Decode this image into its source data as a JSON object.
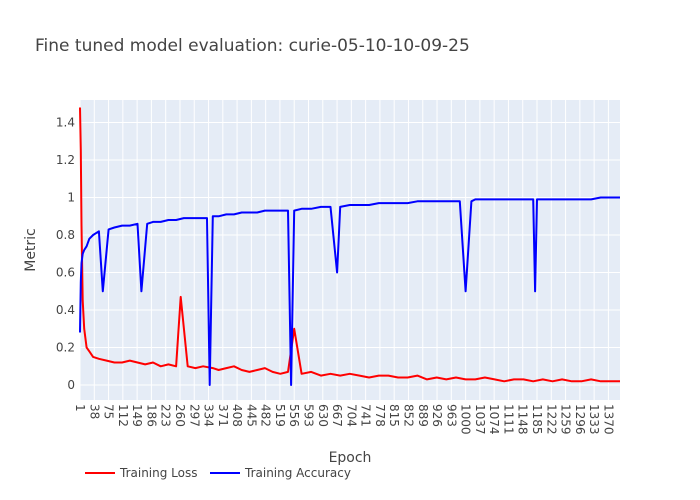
{
  "chart_data": {
    "type": "line",
    "title": "Fine tuned model evaluation: curie-05-10-10-09-25",
    "xlabel": "Epoch",
    "ylabel": "Metric",
    "xlim": [
      1,
      1400
    ],
    "ylim": [
      -0.08,
      1.52
    ],
    "grid": true,
    "legend_position": "bottom-left",
    "x_ticks": [
      1,
      38,
      75,
      112,
      149,
      186,
      223,
      260,
      297,
      334,
      371,
      408,
      445,
      482,
      519,
      556,
      593,
      630,
      667,
      704,
      741,
      778,
      815,
      852,
      889,
      926,
      963,
      1000,
      1037,
      1074,
      1111,
      1148,
      1185,
      1222,
      1259,
      1296,
      1333,
      1370
    ],
    "y_ticks": [
      0,
      0.2,
      0.4,
      0.6,
      0.8,
      1,
      1.2,
      1.4
    ],
    "y_tick_labels": [
      "0",
      "0.2",
      "0.4",
      "0.6",
      "0.8",
      "1",
      "1.2",
      "1.4"
    ],
    "series": [
      {
        "name": "Training Loss",
        "color": "#ff0000",
        "x": [
          1,
          3,
          5,
          8,
          12,
          18,
          25,
          35,
          50,
          70,
          90,
          110,
          130,
          150,
          170,
          190,
          210,
          230,
          250,
          262,
          280,
          300,
          320,
          345,
          360,
          380,
          400,
          420,
          440,
          460,
          480,
          500,
          520,
          540,
          556,
          575,
          600,
          625,
          650,
          675,
          700,
          725,
          750,
          775,
          800,
          825,
          850,
          875,
          900,
          925,
          950,
          975,
          1000,
          1025,
          1050,
          1075,
          1100,
          1125,
          1150,
          1175,
          1200,
          1225,
          1250,
          1275,
          1300,
          1325,
          1350,
          1375,
          1400
        ],
        "values": [
          1.48,
          1.25,
          0.85,
          0.45,
          0.3,
          0.2,
          0.18,
          0.15,
          0.14,
          0.13,
          0.12,
          0.12,
          0.13,
          0.12,
          0.11,
          0.12,
          0.1,
          0.11,
          0.1,
          0.47,
          0.1,
          0.09,
          0.1,
          0.09,
          0.08,
          0.09,
          0.1,
          0.08,
          0.07,
          0.08,
          0.09,
          0.07,
          0.06,
          0.07,
          0.3,
          0.06,
          0.07,
          0.05,
          0.06,
          0.05,
          0.06,
          0.05,
          0.04,
          0.05,
          0.05,
          0.04,
          0.04,
          0.05,
          0.03,
          0.04,
          0.03,
          0.04,
          0.03,
          0.03,
          0.04,
          0.03,
          0.02,
          0.03,
          0.03,
          0.02,
          0.03,
          0.02,
          0.03,
          0.02,
          0.02,
          0.03,
          0.02,
          0.02,
          0.02
        ]
      },
      {
        "name": "Training Accuracy",
        "color": "#0000ff",
        "x": [
          1,
          3,
          5,
          8,
          12,
          18,
          25,
          35,
          50,
          60,
          75,
          90,
          110,
          130,
          150,
          160,
          175,
          190,
          210,
          230,
          250,
          270,
          290,
          310,
          330,
          337,
          345,
          360,
          380,
          400,
          420,
          440,
          460,
          480,
          500,
          520,
          540,
          548,
          556,
          575,
          600,
          625,
          650,
          667,
          675,
          700,
          725,
          750,
          775,
          800,
          825,
          850,
          875,
          900,
          925,
          950,
          975,
          985,
          1000,
          1015,
          1025,
          1050,
          1075,
          1100,
          1125,
          1150,
          1175,
          1180,
          1185,
          1200,
          1225,
          1250,
          1275,
          1300,
          1325,
          1350,
          1375,
          1400
        ],
        "values": [
          0.28,
          0.55,
          0.65,
          0.7,
          0.72,
          0.74,
          0.78,
          0.8,
          0.82,
          0.5,
          0.83,
          0.84,
          0.85,
          0.85,
          0.86,
          0.5,
          0.86,
          0.87,
          0.87,
          0.88,
          0.88,
          0.89,
          0.89,
          0.89,
          0.89,
          0.0,
          0.9,
          0.9,
          0.91,
          0.91,
          0.92,
          0.92,
          0.92,
          0.93,
          0.93,
          0.93,
          0.93,
          0.0,
          0.93,
          0.94,
          0.94,
          0.95,
          0.95,
          0.6,
          0.95,
          0.96,
          0.96,
          0.96,
          0.97,
          0.97,
          0.97,
          0.97,
          0.98,
          0.98,
          0.98,
          0.98,
          0.98,
          0.98,
          0.5,
          0.98,
          0.99,
          0.99,
          0.99,
          0.99,
          0.99,
          0.99,
          0.99,
          0.5,
          0.99,
          0.99,
          0.99,
          0.99,
          0.99,
          0.99,
          0.99,
          1.0,
          1.0,
          1.0
        ]
      }
    ]
  }
}
